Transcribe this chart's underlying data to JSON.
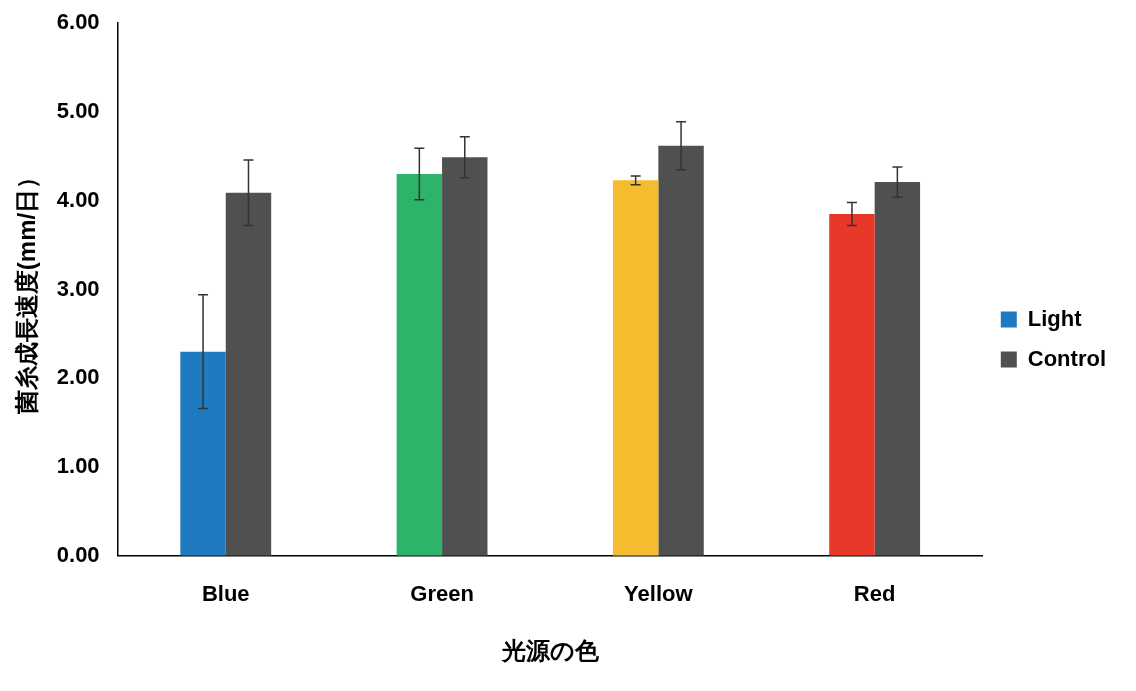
{
  "chart_data": {
    "type": "bar",
    "ylabel": "菌糸成長速度(mm/日）",
    "xlabel": "光源の色",
    "categories": [
      "Blue",
      "Green",
      "Yellow",
      "Red"
    ],
    "series": [
      {
        "name": "Light",
        "colors": [
          "#1f7bbf",
          "#2db36a",
          "#f5bc30",
          "#e8382a"
        ],
        "values": [
          2.3,
          4.3,
          4.23,
          3.85
        ],
        "errors": [
          0.64,
          0.29,
          0.05,
          0.13
        ]
      },
      {
        "name": "Control",
        "color": "#505050",
        "values": [
          4.09,
          4.49,
          4.62,
          4.21
        ],
        "errors": [
          0.37,
          0.23,
          0.27,
          0.17
        ]
      }
    ],
    "ylim": [
      0,
      6
    ],
    "yticks": [
      {
        "value": 0,
        "label": "0.00"
      },
      {
        "value": 1,
        "label": "1.00"
      },
      {
        "value": 2,
        "label": "2.00"
      },
      {
        "value": 3,
        "label": "3.00"
      },
      {
        "value": 4,
        "label": "4.00"
      },
      {
        "value": 5,
        "label": "5.00"
      },
      {
        "value": 6,
        "label": "6.00"
      }
    ],
    "grid": false,
    "legend": "right"
  }
}
